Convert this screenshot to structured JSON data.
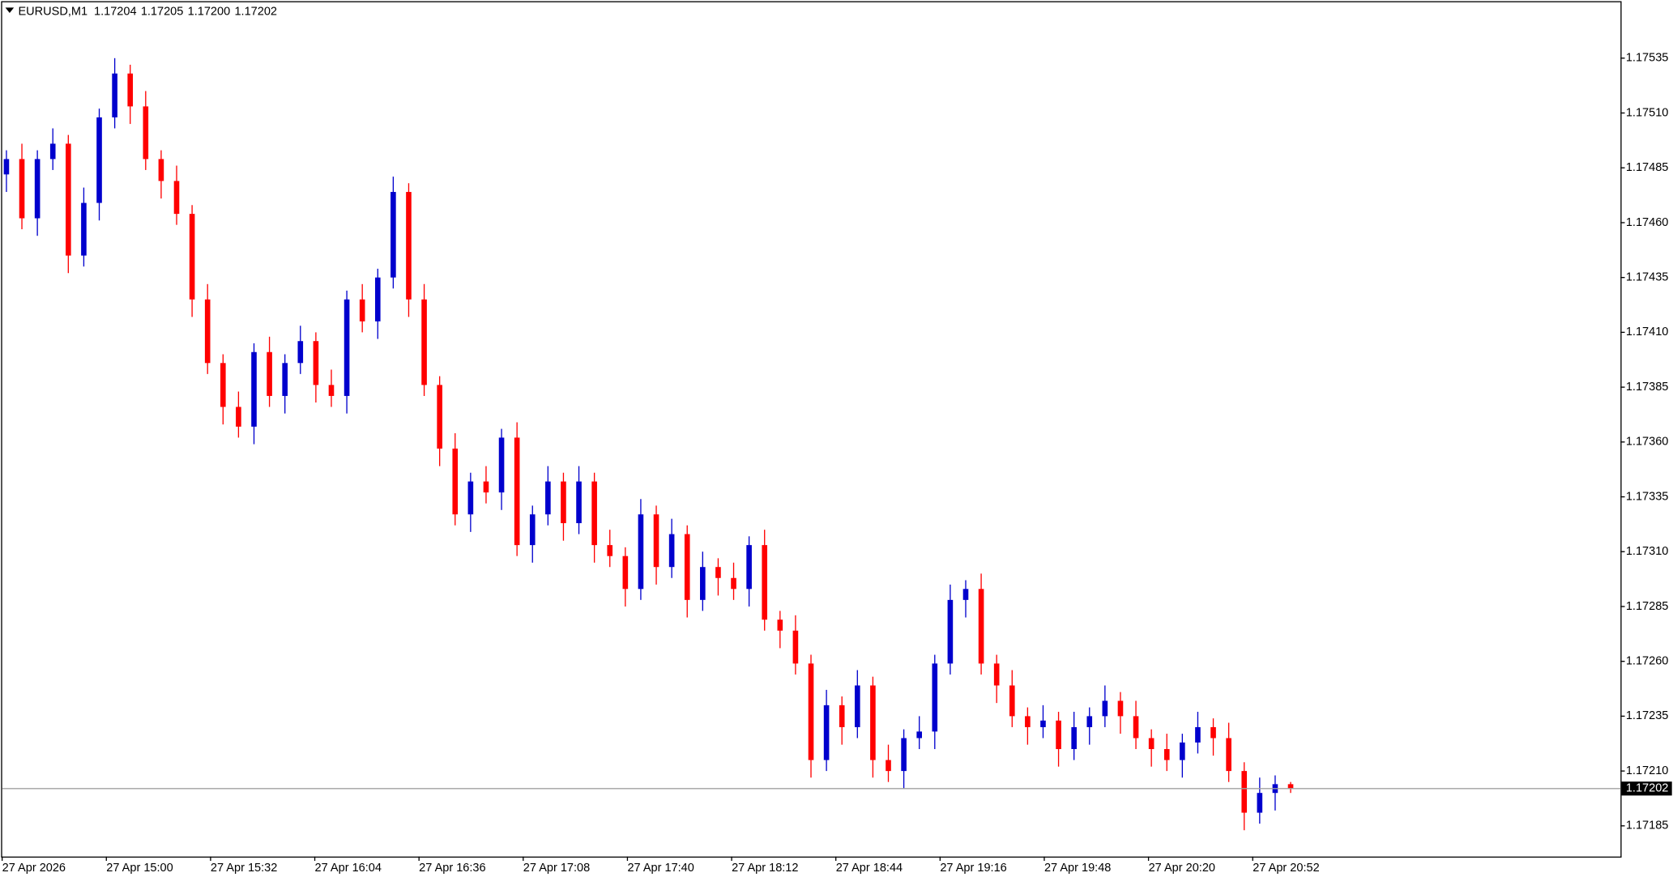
{
  "header": {
    "symbol": "EURUSD,M1",
    "open": "1.17204",
    "high": "1.17205",
    "low": "1.17200",
    "close": "1.17202"
  },
  "chart_data": {
    "type": "candlestick",
    "up_color": "#0000cd",
    "down_color": "#ff0000",
    "ylim": [
      1.17171,
      1.1756
    ],
    "yticks": [
      {
        "value": 1.17185,
        "label": "1.17185"
      },
      {
        "value": 1.1721,
        "label": "1.17210"
      },
      {
        "value": 1.17235,
        "label": "1.17235"
      },
      {
        "value": 1.1726,
        "label": "1.17260"
      },
      {
        "value": 1.17285,
        "label": "1.17285"
      },
      {
        "value": 1.1731,
        "label": "1.17310"
      },
      {
        "value": 1.17335,
        "label": "1.17335"
      },
      {
        "value": 1.1736,
        "label": "1.17360"
      },
      {
        "value": 1.17385,
        "label": "1.17385"
      },
      {
        "value": 1.1741,
        "label": "1.17410"
      },
      {
        "value": 1.17435,
        "label": "1.17435"
      },
      {
        "value": 1.1746,
        "label": "1.17460"
      },
      {
        "value": 1.17485,
        "label": "1.17485"
      },
      {
        "value": 1.1751,
        "label": "1.17510"
      },
      {
        "value": 1.17535,
        "label": "1.17535"
      }
    ],
    "x_labels": [
      "27 Apr 2026",
      "27 Apr 15:00",
      "27 Apr 15:32",
      "27 Apr 16:04",
      "27 Apr 16:36",
      "27 Apr 17:08",
      "27 Apr 17:40",
      "27 Apr 18:12",
      "27 Apr 18:44",
      "27 Apr 19:16",
      "27 Apr 19:48",
      "27 Apr 20:20",
      "27 Apr 20:52"
    ],
    "last_price": {
      "value": 1.17202,
      "label": "1.17202"
    },
    "open": [
      1.17482,
      1.17489,
      1.17462,
      1.17489,
      1.17496,
      1.17445,
      1.17469,
      1.17508,
      1.17528,
      1.17513,
      1.17489,
      1.17479,
      1.17464,
      1.17425,
      1.17396,
      1.17376,
      1.17367,
      1.17401,
      1.17381,
      1.17396,
      1.17406,
      1.17386,
      1.17381,
      1.17425,
      1.17415,
      1.17435,
      1.17474,
      1.17425,
      1.17386,
      1.17357,
      1.17327,
      1.17342,
      1.17337,
      1.17362,
      1.17313,
      1.17327,
      1.17342,
      1.17323,
      1.17342,
      1.17313,
      1.17308,
      1.17293,
      1.17327,
      1.17303,
      1.17318,
      1.17288,
      1.17303,
      1.17298,
      1.17293,
      1.17313,
      1.17279,
      1.17274,
      1.17259,
      1.17215,
      1.1724,
      1.1723,
      1.17249,
      1.17215,
      1.1721,
      1.17225,
      1.17228,
      1.17259,
      1.17288,
      1.17293,
      1.17259,
      1.17249,
      1.17235,
      1.1723,
      1.17233,
      1.1722,
      1.1723,
      1.17235,
      1.17242,
      1.17235,
      1.17225,
      1.1722,
      1.17215,
      1.17223,
      1.1723,
      1.17225,
      1.1721,
      1.17191,
      1.172,
      1.17204
    ],
    "high": [
      1.17493,
      1.17496,
      1.17493,
      1.17503,
      1.175,
      1.17476,
      1.17512,
      1.17535,
      1.17532,
      1.1752,
      1.17493,
      1.17486,
      1.17468,
      1.17432,
      1.174,
      1.17383,
      1.17405,
      1.17408,
      1.174,
      1.17413,
      1.1741,
      1.17393,
      1.17429,
      1.17432,
      1.17439,
      1.17481,
      1.17478,
      1.17432,
      1.1739,
      1.17364,
      1.17346,
      1.17349,
      1.17366,
      1.17369,
      1.17331,
      1.17349,
      1.17346,
      1.17349,
      1.17346,
      1.1732,
      1.17312,
      1.17334,
      1.17331,
      1.17325,
      1.17322,
      1.1731,
      1.17307,
      1.17305,
      1.17317,
      1.1732,
      1.17283,
      1.17281,
      1.17263,
      1.17247,
      1.17244,
      1.17256,
      1.17253,
      1.17222,
      1.17229,
      1.17235,
      1.17263,
      1.17295,
      1.17297,
      1.173,
      1.17263,
      1.17256,
      1.17239,
      1.1724,
      1.17237,
      1.17237,
      1.17239,
      1.17249,
      1.17246,
      1.17242,
      1.17229,
      1.17227,
      1.17227,
      1.17237,
      1.17234,
      1.17232,
      1.17214,
      1.17207,
      1.17208,
      1.17205
    ],
    "low": [
      1.17474,
      1.17457,
      1.17454,
      1.17484,
      1.17437,
      1.1744,
      1.17461,
      1.17503,
      1.17505,
      1.17484,
      1.17471,
      1.17459,
      1.17417,
      1.17391,
      1.17368,
      1.17362,
      1.17359,
      1.17376,
      1.17373,
      1.17391,
      1.17378,
      1.17376,
      1.17373,
      1.1741,
      1.17407,
      1.1743,
      1.17417,
      1.17381,
      1.17349,
      1.17322,
      1.17319,
      1.17332,
      1.17329,
      1.17308,
      1.17305,
      1.17322,
      1.17315,
      1.17318,
      1.17305,
      1.17303,
      1.17285,
      1.17288,
      1.17295,
      1.17298,
      1.1728,
      1.17283,
      1.1729,
      1.17288,
      1.17285,
      1.17274,
      1.17266,
      1.17254,
      1.17207,
      1.1721,
      1.17222,
      1.17225,
      1.17207,
      1.17205,
      1.17202,
      1.1722,
      1.1722,
      1.17254,
      1.1728,
      1.17254,
      1.17241,
      1.1723,
      1.17222,
      1.17225,
      1.17212,
      1.17215,
      1.17222,
      1.1723,
      1.17227,
      1.1722,
      1.17212,
      1.1721,
      1.17207,
      1.17218,
      1.17217,
      1.17205,
      1.17183,
      1.17186,
      1.17192,
      1.172
    ],
    "close": [
      1.17489,
      1.17462,
      1.17489,
      1.17496,
      1.17445,
      1.17469,
      1.17508,
      1.17528,
      1.17513,
      1.17489,
      1.17479,
      1.17464,
      1.17425,
      1.17396,
      1.17376,
      1.17367,
      1.17401,
      1.17381,
      1.17396,
      1.17406,
      1.17386,
      1.17381,
      1.17425,
      1.17415,
      1.17435,
      1.17474,
      1.17425,
      1.17386,
      1.17357,
      1.17327,
      1.17342,
      1.17337,
      1.17362,
      1.17313,
      1.17327,
      1.17342,
      1.17323,
      1.17342,
      1.17313,
      1.17308,
      1.17293,
      1.17327,
      1.17303,
      1.17318,
      1.17288,
      1.17303,
      1.17298,
      1.17293,
      1.17313,
      1.17279,
      1.17274,
      1.17259,
      1.17215,
      1.1724,
      1.1723,
      1.17249,
      1.17215,
      1.1721,
      1.17225,
      1.17228,
      1.17259,
      1.17288,
      1.17293,
      1.17259,
      1.17249,
      1.17235,
      1.1723,
      1.17233,
      1.1722,
      1.1723,
      1.17235,
      1.17242,
      1.17235,
      1.17225,
      1.1722,
      1.17215,
      1.17223,
      1.1723,
      1.17225,
      1.1721,
      1.17191,
      1.172,
      1.17204,
      1.17202
    ]
  }
}
